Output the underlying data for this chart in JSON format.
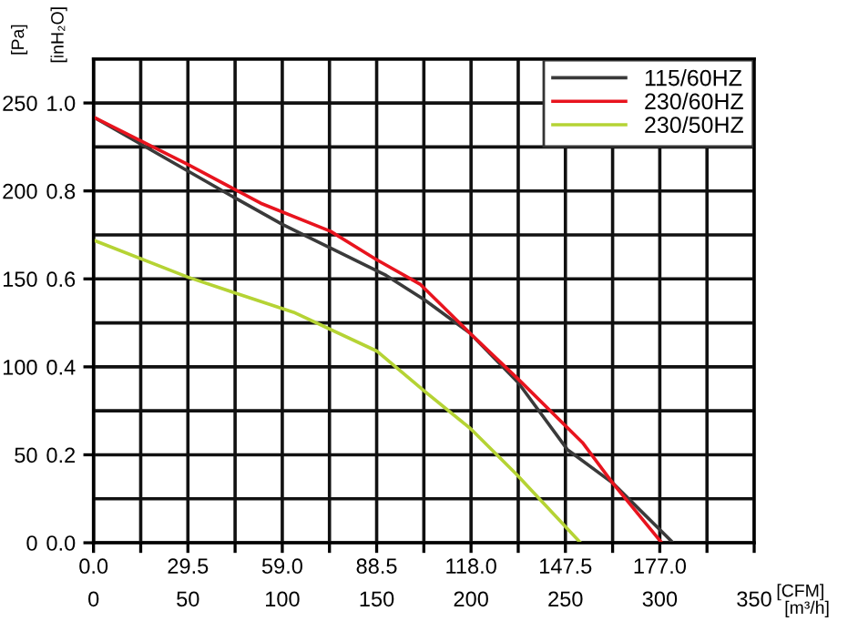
{
  "chart_data": {
    "type": "line",
    "xlabel": "[m³/h]",
    "x2label": "[CFM]",
    "ylabel": "[Pa]",
    "y2label": "[inH₂O]",
    "series": [
      {
        "name": "115/60HZ",
        "color": "#3a3a3a",
        "x": [
          0,
          75,
          100,
          155,
          175.5,
          199.6,
          225,
          251,
          275,
          307
        ],
        "values": [
          242,
          196,
          181,
          152,
          138,
          119,
          91,
          53,
          34,
          0
        ]
      },
      {
        "name": "230/60HZ",
        "color": "#e8141e",
        "x": [
          0,
          50,
          88.6,
          125.7,
          149.8,
          173,
          199.6,
          225,
          259,
          275,
          301
        ],
        "values": [
          242,
          215,
          193,
          177,
          161,
          147,
          119,
          93,
          57,
          34,
          0
        ]
      },
      {
        "name": "230/50HZ",
        "color": "#b5d334",
        "x": [
          0,
          50,
          75,
          106,
          150,
          175.5,
          199.6,
          224,
          258
        ],
        "values": [
          172,
          151,
          142,
          131,
          109,
          86,
          65,
          39,
          0
        ]
      }
    ],
    "xlim": [
      0,
      350
    ],
    "xticks": [
      0,
      {
        "value": 25,
        "label": null
      },
      50,
      {
        "value": 75,
        "label": null
      },
      100,
      {
        "value": 125,
        "label": null
      },
      150,
      {
        "value": 175,
        "label": null
      },
      200,
      {
        "value": 225,
        "label": null
      },
      250,
      {
        "value": 275,
        "label": null
      },
      300,
      {
        "value": 325,
        "label": null
      },
      350
    ],
    "x2lim": [
      0,
      206.5
    ],
    "x2ticks": [
      {
        "value": 0,
        "label": "0.0"
      },
      {
        "value": 29.5,
        "label": "29.5"
      },
      {
        "value": 59,
        "label": "59.0"
      },
      {
        "value": 88.5,
        "label": "88.5"
      },
      {
        "value": 118,
        "label": "118.0"
      },
      {
        "value": 147.5,
        "label": "147.5"
      },
      {
        "value": 177,
        "label": "177.0"
      }
    ],
    "ylim": [
      0,
      275
    ],
    "yticks": [
      0,
      {
        "value": 25,
        "label": null
      },
      50,
      {
        "value": 75,
        "label": null
      },
      100,
      {
        "value": 125,
        "label": null
      },
      150,
      {
        "value": 175,
        "label": null
      },
      200,
      {
        "value": 225,
        "label": null
      },
      250,
      {
        "value": 275,
        "label": null
      }
    ],
    "y2lim": [
      0,
      1.1
    ],
    "y2ticks": [
      {
        "value": 0,
        "label": "0.0"
      },
      0.2,
      0.4,
      0.6,
      0.8,
      {
        "value": 1,
        "label": "1.0"
      }
    ],
    "grid": true,
    "legend": "top right",
    "marker": "none",
    "line_style": "solid"
  }
}
